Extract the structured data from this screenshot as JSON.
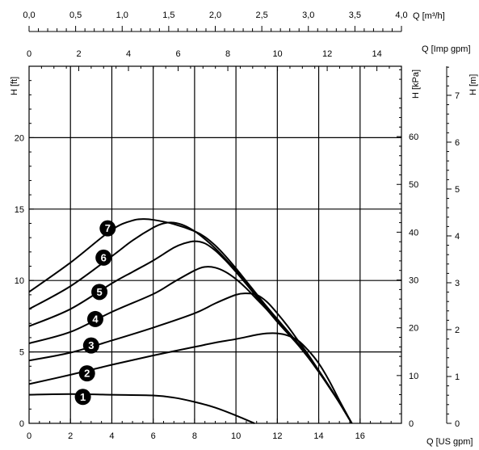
{
  "chart_data": {
    "type": "line",
    "grid": true,
    "x_axes": [
      {
        "label": "Q [US gpm]",
        "range": [
          0,
          18
        ],
        "tick_labels": [
          "0",
          "2",
          "4",
          "6",
          "8",
          "10",
          "12",
          "14",
          "16"
        ]
      },
      {
        "label": "Q [Imp gpm]",
        "range": [
          0,
          15
        ],
        "tick_labels": [
          "0",
          "2",
          "4",
          "6",
          "8",
          "10",
          "12",
          "14"
        ]
      },
      {
        "label": "Q [m³/h]",
        "range": [
          0,
          4.0
        ],
        "tick_labels": [
          "0,0",
          "0,5",
          "1,0",
          "1,5",
          "2,0",
          "2,5",
          "3,0",
          "3,5",
          "4,0"
        ]
      }
    ],
    "y_axes": [
      {
        "label": "H [ft]",
        "range": [
          0,
          25
        ],
        "tick_labels": [
          "0",
          "5",
          "10",
          "15",
          "20"
        ]
      },
      {
        "label": "H [kPa]",
        "range": [
          0,
          75
        ],
        "tick_labels": [
          "0",
          "10",
          "20",
          "30",
          "40",
          "50",
          "60"
        ]
      },
      {
        "label": "H [m]",
        "range": [
          0,
          7.6
        ],
        "tick_labels": [
          "0",
          "1",
          "2",
          "3",
          "4",
          "5",
          "6",
          "7"
        ]
      }
    ],
    "series": [
      {
        "name": "1",
        "x": [
          0,
          2,
          4,
          6,
          7,
          8,
          9,
          10,
          10.9
        ],
        "y": [
          2.0,
          2.05,
          2.0,
          1.95,
          1.8,
          1.5,
          1.1,
          0.55,
          0
        ]
      },
      {
        "name": "2",
        "x": [
          0,
          2,
          4,
          6,
          8,
          9,
          10,
          11,
          11.5,
          12,
          12.5,
          13,
          13.5,
          14,
          14.5,
          15,
          15.6
        ],
        "y": [
          2.75,
          3.4,
          4.1,
          4.75,
          5.35,
          5.65,
          5.9,
          6.2,
          6.3,
          6.3,
          6.15,
          5.8,
          5.1,
          4.2,
          3.0,
          1.6,
          0
        ]
      },
      {
        "name": "3",
        "x": [
          0,
          2,
          4,
          6,
          8,
          9,
          10,
          10.5,
          11,
          11.5,
          12,
          12.5,
          13,
          13.5,
          14,
          14.5,
          15,
          15.6
        ],
        "y": [
          4.4,
          4.95,
          5.8,
          6.7,
          7.7,
          8.4,
          9.0,
          9.1,
          9.0,
          8.5,
          7.7,
          6.8,
          5.8,
          4.8,
          3.7,
          2.6,
          1.45,
          0
        ]
      },
      {
        "name": "4",
        "x": [
          0,
          2,
          4,
          6,
          7,
          8,
          8.5,
          9,
          9.5,
          10,
          10.5,
          11,
          11.5,
          12,
          12.5,
          13,
          13.5,
          14,
          14.5,
          15,
          15.6
        ],
        "y": [
          5.6,
          6.4,
          7.8,
          9.05,
          9.9,
          10.7,
          10.95,
          10.9,
          10.6,
          10.1,
          9.45,
          8.7,
          7.95,
          7.1,
          6.3,
          5.5,
          4.6,
          3.65,
          2.55,
          1.45,
          0
        ]
      },
      {
        "name": "5",
        "x": [
          0,
          2,
          4,
          5,
          6,
          7,
          7.5,
          8,
          8.5,
          9,
          9.5,
          10,
          10.5,
          11,
          11.5,
          12,
          12.5,
          13,
          13.5,
          14,
          14.5,
          15,
          15.6
        ],
        "y": [
          6.8,
          8.0,
          9.8,
          10.6,
          11.4,
          12.3,
          12.6,
          12.75,
          12.6,
          12.1,
          11.4,
          10.6,
          9.75,
          8.85,
          8.0,
          7.2,
          6.35,
          5.5,
          4.6,
          3.6,
          2.55,
          1.45,
          0
        ]
      },
      {
        "name": "6",
        "x": [
          0,
          2,
          4,
          5,
          6,
          6.5,
          7,
          7.5,
          8,
          8.5,
          9,
          9.5,
          10,
          10.5,
          11,
          11.5,
          12,
          12.5,
          13,
          13.5,
          14,
          14.5,
          15,
          15.6
        ],
        "y": [
          8.0,
          9.6,
          11.7,
          12.8,
          13.7,
          14.0,
          14.05,
          13.85,
          13.45,
          12.9,
          12.25,
          11.5,
          10.7,
          9.85,
          8.95,
          8.1,
          7.25,
          6.4,
          5.55,
          4.65,
          3.65,
          2.6,
          1.45,
          0
        ]
      },
      {
        "name": "7",
        "x": [
          0,
          2,
          4,
          5,
          5.5,
          6,
          7,
          8,
          8.5,
          9,
          9.5,
          10,
          10.5,
          11,
          11.5,
          12,
          12.5,
          13,
          13.5,
          14,
          14.5,
          15,
          15.6
        ],
        "y": [
          9.2,
          11.25,
          13.55,
          14.2,
          14.3,
          14.25,
          13.95,
          13.45,
          13.05,
          12.45,
          11.7,
          10.85,
          9.95,
          9.05,
          8.15,
          7.3,
          6.45,
          5.6,
          4.7,
          3.7,
          2.6,
          1.45,
          0
        ]
      }
    ],
    "markers": [
      {
        "label": "1",
        "x": 2.6,
        "y": 1.85
      },
      {
        "label": "2",
        "x": 2.8,
        "y": 3.5
      },
      {
        "label": "3",
        "x": 3.0,
        "y": 5.45
      },
      {
        "label": "4",
        "x": 3.2,
        "y": 7.3
      },
      {
        "label": "5",
        "x": 3.4,
        "y": 9.2
      },
      {
        "label": "6",
        "x": 3.6,
        "y": 11.6
      },
      {
        "label": "7",
        "x": 3.8,
        "y": 13.65
      }
    ]
  }
}
